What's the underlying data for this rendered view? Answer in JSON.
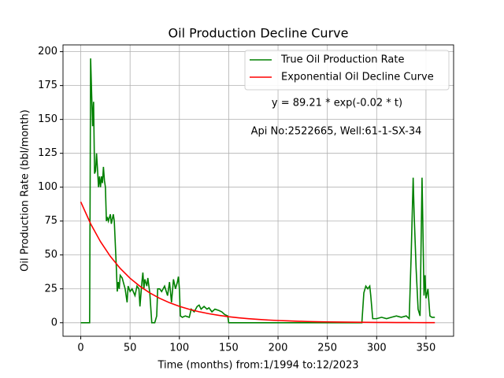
{
  "chart_data": {
    "type": "line",
    "title": "Oil Production Decline Curve",
    "xlabel": "Time (months) from:1/1994 to:12/2023",
    "ylabel": "Oil Production Rate (bbl/month)",
    "annotations": [
      "y = 89.21 * exp(-0.02 * t)",
      "Api No:2522665, Well:61-1-SX-34"
    ],
    "xlim": [
      -18,
      378
    ],
    "ylim": [
      -10,
      205
    ],
    "xticks": [
      0,
      50,
      100,
      150,
      200,
      250,
      300,
      350
    ],
    "yticks": [
      0,
      25,
      50,
      75,
      100,
      125,
      150,
      175,
      200
    ],
    "grid": true,
    "legend": "upper right",
    "series": [
      {
        "name": "True Oil Production Rate",
        "color": "#008000",
        "x": [
          0,
          9,
          10,
          11,
          12,
          13,
          14,
          15,
          16,
          17,
          18,
          19,
          20,
          21,
          22,
          23,
          24,
          25,
          26,
          27,
          28,
          30,
          31,
          33,
          34,
          36,
          37,
          38,
          39,
          40,
          42,
          45,
          47,
          48,
          50,
          52,
          55,
          57,
          59,
          60,
          62,
          63,
          64,
          65,
          67,
          68,
          70,
          72,
          75,
          77,
          78,
          80,
          82,
          85,
          88,
          90,
          92,
          94,
          96,
          98,
          99,
          100,
          101,
          103,
          106,
          110,
          112,
          115,
          118,
          120,
          122,
          125,
          128,
          130,
          133,
          136,
          140,
          143,
          146,
          149,
          150,
          285,
          287,
          289,
          291,
          293,
          294,
          296,
          300,
          305,
          310,
          315,
          320,
          325,
          330,
          333,
          335,
          337,
          338,
          340,
          342,
          344,
          346,
          347,
          348,
          349,
          350,
          352,
          354,
          356,
          359
        ],
        "values": [
          0,
          0,
          195,
          170,
          145,
          163,
          110,
          112,
          125,
          113,
          100,
          108,
          100,
          108,
          103,
          115,
          105,
          100,
          75,
          78,
          75,
          80,
          73,
          80,
          75,
          42,
          23,
          30,
          25,
          35,
          33,
          25,
          15,
          27,
          23,
          25,
          20,
          27,
          25,
          12,
          30,
          37,
          25,
          32,
          27,
          33,
          22,
          0,
          0,
          5,
          25,
          25,
          23,
          27,
          20,
          30,
          15,
          32,
          25,
          30,
          34,
          25,
          5,
          4,
          5,
          4,
          10,
          8,
          12,
          13,
          10,
          12,
          10,
          11,
          8,
          10,
          9,
          8,
          6,
          5,
          0,
          0,
          22,
          27,
          25,
          27,
          20,
          3,
          3,
          4,
          3,
          4,
          5,
          4,
          5,
          3,
          50,
          107,
          80,
          40,
          10,
          5,
          107,
          65,
          20,
          35,
          18,
          25,
          5,
          4,
          4
        ]
      },
      {
        "name": "Exponential Oil Decline Curve",
        "color": "#ff0000",
        "x": [
          0,
          10,
          20,
          30,
          40,
          50,
          60,
          70,
          80,
          90,
          100,
          110,
          120,
          130,
          140,
          150,
          160,
          170,
          180,
          190,
          200,
          210,
          220,
          230,
          240,
          250,
          260,
          270,
          280,
          290,
          300,
          310,
          320,
          330,
          340,
          350,
          359
        ],
        "values": [
          89.21,
          73.04,
          59.8,
          48.96,
          40.08,
          32.82,
          26.87,
          22.0,
          18.01,
          14.74,
          12.07,
          9.88,
          8.09,
          6.62,
          5.42,
          4.44,
          3.64,
          2.98,
          2.44,
          1.99,
          1.63,
          1.34,
          1.09,
          0.9,
          0.73,
          0.6,
          0.49,
          0.4,
          0.33,
          0.27,
          0.22,
          0.18,
          0.15,
          0.12,
          0.1,
          0.08,
          0.07
        ]
      }
    ]
  }
}
